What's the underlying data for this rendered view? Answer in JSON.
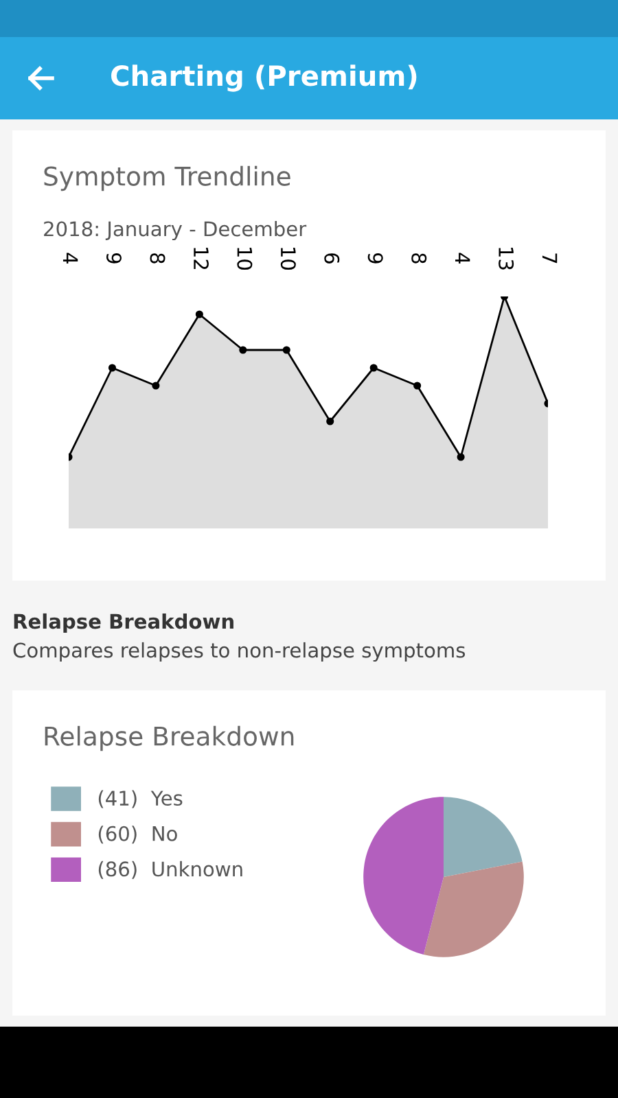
{
  "chart_data": [
    {
      "type": "area",
      "title": "Symptom Trendline",
      "subtitle": "2018: January - December",
      "annotations": [
        "Charting (Premium)"
      ],
      "categories": [
        null,
        null,
        null,
        null,
        null,
        null,
        null,
        null,
        null,
        null,
        null,
        null
      ],
      "series": [
        {
          "color": "#dedede",
          "values": [
            4,
            9,
            8,
            12,
            10,
            10,
            6,
            9,
            8,
            4,
            13,
            7
          ]
        }
      ],
      "data_labels": true,
      "marker": "circle",
      "line_style": "solid",
      "grid": false,
      "legend": false
    },
    {
      "type": "pie",
      "title": "Relapse Breakdown",
      "annotations": [
        "Relapse Breakdown",
        "Compares relapses to non-relapse symptoms"
      ],
      "categories": [
        "(41)  Yes",
        "(60)  No",
        "(86)  Unknown"
      ],
      "values": [
        41,
        60,
        86
      ],
      "colors": [
        "#8fb0b9",
        "#c0908e",
        "#b35fbe"
      ],
      "legend": "left"
    }
  ]
}
